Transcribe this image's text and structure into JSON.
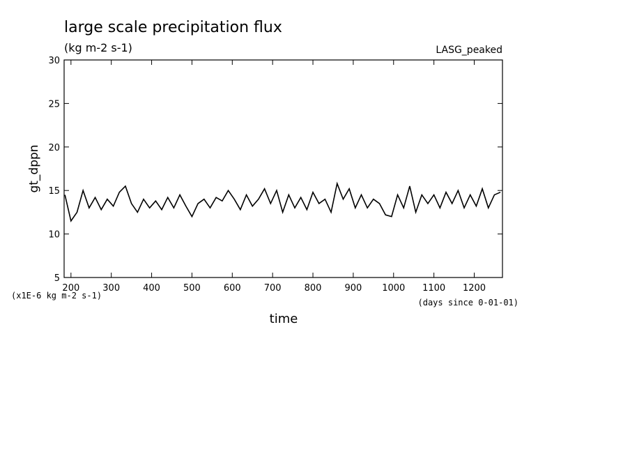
{
  "chart_data": {
    "type": "line",
    "title": "large scale precipitation flux",
    "subtitle": "(kg m-2 s-1)",
    "annotation": "LASG_peaked",
    "y_label": "gt_dppn",
    "x_label": "time",
    "y_units": "(x1E-6 kg m-2 s-1)",
    "x_units": "(days since 0-01-01)",
    "xlim": [
      183,
      1270
    ],
    "ylim": [
      5,
      30
    ],
    "xticks": [
      200,
      300,
      400,
      500,
      600,
      700,
      800,
      900,
      1000,
      1100,
      1200
    ],
    "yticks": [
      5,
      10,
      15,
      20,
      25,
      30
    ],
    "series": [
      {
        "color": "#000000",
        "x": [
          185,
          200,
          215,
          230,
          245,
          260,
          275,
          290,
          305,
          320,
          335,
          350,
          365,
          380,
          395,
          410,
          425,
          440,
          455,
          470,
          485,
          500,
          515,
          530,
          545,
          560,
          575,
          590,
          605,
          620,
          635,
          650,
          665,
          680,
          695,
          710,
          725,
          740,
          755,
          770,
          785,
          800,
          815,
          830,
          845,
          860,
          875,
          890,
          905,
          920,
          935,
          950,
          965,
          980,
          995,
          1010,
          1025,
          1040,
          1055,
          1070,
          1085,
          1100,
          1115,
          1130,
          1145,
          1160,
          1175,
          1190,
          1205,
          1220,
          1235,
          1250,
          1265
        ],
        "values": [
          14.5,
          11.5,
          12.5,
          15.0,
          13.0,
          14.2,
          12.8,
          14.0,
          13.2,
          14.8,
          15.5,
          13.5,
          12.5,
          14.0,
          13.0,
          13.8,
          12.8,
          14.2,
          13.0,
          14.5,
          13.2,
          12.0,
          13.5,
          14.0,
          13.0,
          14.2,
          13.8,
          15.0,
          14.0,
          12.8,
          14.5,
          13.2,
          14.0,
          15.2,
          13.5,
          15.0,
          12.5,
          14.5,
          13.0,
          14.2,
          12.8,
          14.8,
          13.5,
          14.0,
          12.5,
          15.8,
          14.0,
          15.2,
          13.0,
          14.5,
          13.0,
          14.0,
          13.5,
          12.2,
          12.0,
          14.5,
          13.0,
          15.5,
          12.5,
          14.5,
          13.5,
          14.5,
          13.0,
          14.8,
          13.5,
          15.0,
          13.0,
          14.5,
          13.2,
          15.2,
          13.0,
          14.5,
          14.8
        ]
      }
    ]
  }
}
